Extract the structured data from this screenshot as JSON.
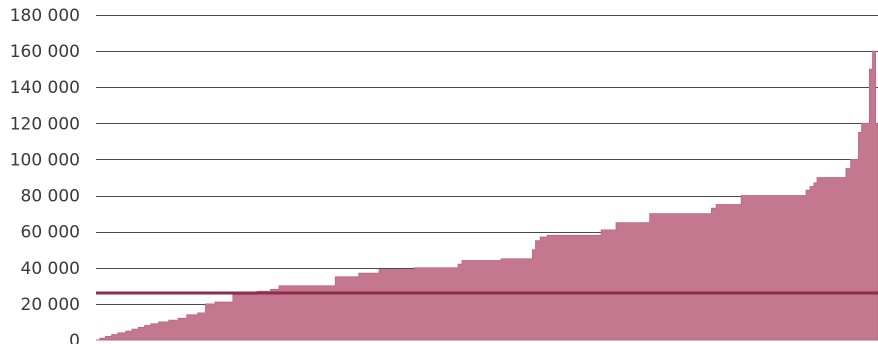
{
  "chart_data": {
    "type": "area",
    "title": "",
    "xlabel": "",
    "ylabel": "",
    "ylim": [
      0,
      180000
    ],
    "yticks": [
      0,
      20000,
      40000,
      60000,
      80000,
      100000,
      120000,
      140000,
      160000,
      180000
    ],
    "ytick_labels": [
      "0",
      "20 000",
      "40 000",
      "60 000",
      "80 000",
      "100 000",
      "120 000",
      "140 000",
      "160 000",
      "180 000"
    ],
    "grid": true,
    "x_range": [
      0,
      100
    ],
    "series": [
      {
        "x": [
          0,
          0.5,
          1.2,
          2.0,
          2.8,
          3.8,
          4.6,
          5.4,
          6.2,
          7.0,
          8.0,
          9.3,
          10.5,
          11.6,
          13.0,
          14.0,
          15.2,
          17.5,
          20.6,
          22.3,
          23.4,
          25.8,
          30.6,
          31.5,
          33.6,
          36.2,
          40.7,
          41.2,
          46.3,
          46.8,
          51.8,
          55.8,
          56.2,
          56.8,
          57.7,
          64.6,
          65.9,
          66.5,
          70.8,
          71.2,
          78.7,
          79.3,
          82.5,
          86.4,
          90.8,
          91.3,
          91.8,
          92.2,
          95.5,
          95.9,
          96.5,
          97.5,
          97.9,
          98.4,
          98.9,
          99.3,
          99.7
        ],
        "y": [
          0,
          1000,
          2000,
          3000,
          4000,
          5000,
          6000,
          7000,
          8000,
          9000,
          10000,
          11000,
          12000,
          14000,
          15000,
          20000,
          21000,
          25000,
          27000,
          28000,
          30000,
          30000,
          35000,
          35000,
          37000,
          39000,
          40000,
          40000,
          42000,
          44000,
          45000,
          50000,
          55000,
          57000,
          58000,
          61000,
          61000,
          65000,
          70000,
          70000,
          73000,
          75000,
          80000,
          80000,
          83000,
          85000,
          87000,
          90000,
          90000,
          95000,
          100000,
          115000,
          120000,
          120000,
          150000,
          160000,
          120000
        ]
      }
    ],
    "reference_line": {
      "y": 26000,
      "color": "#8c2e4e"
    },
    "colors": {
      "fill": "#c4788f",
      "edge": "#b7687f",
      "grid": "#4a4a4a",
      "text": "#3a3a3a"
    }
  }
}
